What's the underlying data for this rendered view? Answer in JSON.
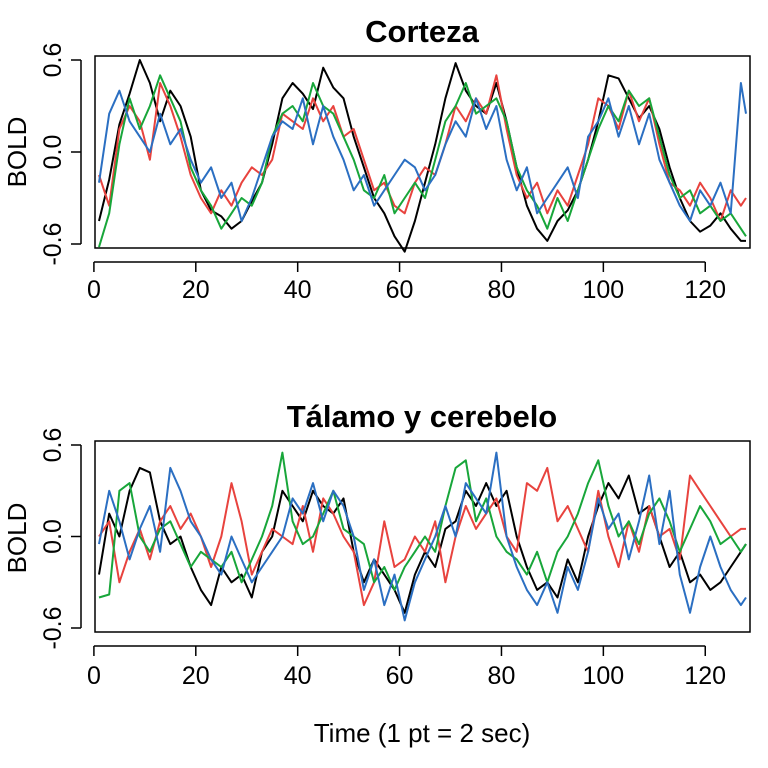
{
  "figure": {
    "shared_xlabel": "Time (1 pt = 2 sec)"
  },
  "chart_data": [
    {
      "type": "line",
      "title": "Corteza",
      "xlabel": "",
      "ylabel": "BOLD",
      "xlim": [
        1,
        128
      ],
      "ylim": [
        -0.6,
        0.6
      ],
      "x_ticks": [
        0,
        20,
        40,
        60,
        80,
        100,
        120
      ],
      "y_ticks": [
        -0.6,
        0.0,
        0.6
      ],
      "y_tick_labels": [
        "-0.6",
        "0.0",
        "0.6"
      ],
      "grid": false,
      "legend": "none",
      "colors": {
        "black": "#000000",
        "red": "#e8433e",
        "green": "#18a63a",
        "blue": "#2b6fc2"
      },
      "x": [
        1,
        3,
        5,
        7,
        9,
        11,
        13,
        15,
        17,
        19,
        21,
        23,
        25,
        27,
        29,
        31,
        33,
        35,
        37,
        39,
        41,
        43,
        45,
        47,
        49,
        51,
        53,
        55,
        57,
        59,
        61,
        63,
        65,
        67,
        69,
        71,
        73,
        75,
        77,
        79,
        81,
        83,
        85,
        87,
        89,
        91,
        93,
        95,
        97,
        99,
        101,
        103,
        105,
        107,
        109,
        111,
        113,
        115,
        117,
        119,
        121,
        123,
        125,
        127,
        128
      ],
      "series": [
        {
          "name": "black",
          "values": [
            -0.45,
            -0.18,
            0.18,
            0.38,
            0.6,
            0.45,
            0.2,
            0.4,
            0.3,
            0.1,
            -0.25,
            -0.38,
            -0.42,
            -0.5,
            -0.45,
            -0.32,
            -0.2,
            0.05,
            0.35,
            0.45,
            0.38,
            0.28,
            0.55,
            0.42,
            0.35,
            0.1,
            -0.1,
            -0.3,
            -0.4,
            -0.55,
            -0.65,
            -0.45,
            -0.2,
            0.05,
            0.35,
            0.58,
            0.4,
            0.3,
            0.25,
            0.45,
            0.2,
            -0.1,
            -0.35,
            -0.5,
            -0.58,
            -0.45,
            -0.38,
            -0.25,
            -0.05,
            0.2,
            0.5,
            0.48,
            0.35,
            0.22,
            0.3,
            0.15,
            -0.1,
            -0.3,
            -0.45,
            -0.52,
            -0.48,
            -0.4,
            -0.5,
            -0.58,
            -0.58
          ]
        },
        {
          "name": "red",
          "values": [
            -0.15,
            -0.35,
            0.15,
            0.3,
            0.2,
            -0.05,
            0.45,
            0.3,
            0.1,
            -0.15,
            -0.3,
            -0.4,
            -0.25,
            -0.35,
            -0.2,
            -0.1,
            -0.15,
            -0.05,
            0.25,
            0.2,
            0.15,
            0.35,
            0.2,
            0.3,
            0.1,
            0.15,
            -0.05,
            -0.25,
            -0.2,
            -0.35,
            -0.4,
            -0.2,
            -0.1,
            -0.15,
            0.05,
            0.3,
            0.2,
            0.35,
            0.25,
            0.5,
            0.15,
            -0.15,
            -0.3,
            -0.2,
            -0.4,
            -0.25,
            -0.35,
            -0.15,
            0.05,
            0.35,
            0.3,
            0.15,
            0.4,
            0.2,
            0.35,
            0.05,
            -0.2,
            -0.25,
            -0.35,
            -0.2,
            -0.3,
            -0.45,
            -0.25,
            -0.35,
            -0.3
          ]
        },
        {
          "name": "green",
          "values": [
            -0.62,
            -0.4,
            0.05,
            0.35,
            0.15,
            0.3,
            0.5,
            0.35,
            0.2,
            -0.1,
            -0.25,
            -0.35,
            -0.5,
            -0.4,
            -0.3,
            -0.35,
            -0.2,
            0.1,
            0.25,
            0.3,
            0.2,
            0.45,
            0.3,
            0.25,
            0.1,
            -0.05,
            -0.25,
            -0.3,
            -0.15,
            -0.4,
            -0.3,
            -0.2,
            -0.3,
            -0.05,
            0.2,
            0.3,
            0.45,
            0.25,
            0.3,
            0.35,
            0.2,
            -0.1,
            -0.25,
            -0.35,
            -0.5,
            -0.3,
            -0.45,
            -0.25,
            -0.05,
            0.15,
            0.3,
            0.2,
            0.4,
            0.3,
            0.35,
            0.1,
            -0.15,
            -0.3,
            -0.25,
            -0.4,
            -0.35,
            -0.45,
            -0.4,
            -0.5,
            -0.55
          ]
        },
        {
          "name": "blue",
          "values": [
            -0.2,
            0.25,
            0.4,
            0.2,
            0.1,
            0.0,
            0.25,
            0.05,
            0.15,
            -0.05,
            -0.2,
            -0.1,
            -0.3,
            -0.2,
            -0.45,
            -0.3,
            -0.1,
            0.1,
            0.2,
            0.15,
            0.35,
            0.05,
            0.3,
            0.1,
            -0.05,
            -0.25,
            -0.15,
            -0.35,
            -0.25,
            -0.15,
            -0.05,
            -0.1,
            -0.25,
            -0.15,
            0.05,
            0.2,
            0.1,
            0.35,
            0.15,
            0.3,
            -0.05,
            -0.25,
            -0.1,
            -0.4,
            -0.3,
            -0.2,
            -0.1,
            -0.3,
            0.1,
            0.2,
            0.35,
            0.1,
            0.3,
            0.05,
            0.25,
            -0.05,
            -0.2,
            -0.35,
            -0.45,
            -0.25,
            -0.35,
            -0.2,
            -0.4,
            0.45,
            0.25
          ]
        }
      ]
    },
    {
      "type": "line",
      "title": "Tálamo y cerebelo",
      "xlabel": "Time (1 pt = 2 sec)",
      "ylabel": "BOLD",
      "xlim": [
        1,
        128
      ],
      "ylim": [
        -0.6,
        0.6
      ],
      "x_ticks": [
        0,
        20,
        40,
        60,
        80,
        100,
        120
      ],
      "y_ticks": [
        -0.6,
        0.0,
        0.6
      ],
      "y_tick_labels": [
        "-0.6",
        "0.0",
        "0.6"
      ],
      "grid": false,
      "legend": "none",
      "colors": {
        "black": "#000000",
        "red": "#e8433e",
        "green": "#18a63a",
        "blue": "#2b6fc2"
      },
      "x": [
        1,
        3,
        5,
        7,
        9,
        11,
        13,
        15,
        17,
        19,
        21,
        23,
        25,
        27,
        29,
        31,
        33,
        35,
        37,
        39,
        41,
        43,
        45,
        47,
        49,
        51,
        53,
        55,
        57,
        59,
        61,
        63,
        65,
        67,
        69,
        71,
        73,
        75,
        77,
        79,
        81,
        83,
        85,
        87,
        89,
        91,
        93,
        95,
        97,
        99,
        101,
        103,
        105,
        107,
        109,
        111,
        113,
        115,
        117,
        119,
        121,
        123,
        125,
        127,
        128
      ],
      "series": [
        {
          "name": "black",
          "values": [
            -0.25,
            0.15,
            0.0,
            0.3,
            0.45,
            0.42,
            0.1,
            -0.05,
            0.0,
            -0.2,
            -0.35,
            -0.45,
            -0.2,
            -0.3,
            -0.25,
            -0.4,
            -0.1,
            0.0,
            0.3,
            0.2,
            0.1,
            0.3,
            0.2,
            0.15,
            0.25,
            -0.1,
            -0.3,
            -0.15,
            -0.25,
            -0.35,
            -0.5,
            -0.25,
            -0.1,
            -0.2,
            0.05,
            0.1,
            0.3,
            0.2,
            0.35,
            0.2,
            0.3,
            0.0,
            -0.2,
            -0.35,
            -0.3,
            -0.4,
            -0.15,
            -0.3,
            0.0,
            0.2,
            0.35,
            0.25,
            0.4,
            0.15,
            0.2,
            0.0,
            -0.2,
            -0.1,
            -0.3,
            -0.25,
            -0.35,
            -0.3,
            -0.2,
            -0.1,
            -0.05
          ]
        },
        {
          "name": "red",
          "values": [
            0.0,
            0.1,
            -0.3,
            -0.1,
            0.05,
            -0.15,
            0.1,
            0.2,
            0.05,
            0.15,
            0.0,
            -0.2,
            0.0,
            0.35,
            0.1,
            -0.25,
            -0.1,
            0.05,
            0.0,
            -0.05,
            0.2,
            -0.1,
            0.25,
            0.15,
            0.0,
            -0.1,
            -0.45,
            -0.3,
            0.1,
            -0.2,
            -0.15,
            0.0,
            -0.1,
            0.1,
            -0.3,
            0.0,
            0.2,
            0.05,
            0.15,
            0.25,
            0.0,
            -0.1,
            0.35,
            0.3,
            0.45,
            0.1,
            0.2,
            0.05,
            -0.1,
            0.3,
            0.0,
            -0.2,
            0.1,
            -0.1,
            0.2,
            0.0,
            0.05,
            -0.15,
            0.4,
            0.3,
            0.2,
            0.1,
            0.0,
            0.05,
            0.05
          ]
        },
        {
          "name": "green",
          "values": [
            -0.4,
            -0.38,
            0.3,
            0.35,
            0.0,
            -0.1,
            0.05,
            0.1,
            -0.05,
            -0.2,
            -0.1,
            -0.15,
            -0.2,
            -0.1,
            -0.3,
            -0.15,
            0.0,
            0.2,
            0.55,
            0.1,
            -0.05,
            0.0,
            0.15,
            0.3,
            0.05,
            0.0,
            -0.05,
            -0.3,
            -0.2,
            -0.35,
            -0.2,
            -0.1,
            0.0,
            -0.1,
            0.2,
            0.45,
            0.5,
            0.1,
            0.25,
            0.0,
            -0.1,
            -0.15,
            -0.25,
            -0.1,
            -0.3,
            -0.1,
            0.0,
            0.15,
            0.35,
            0.5,
            0.2,
            0.0,
            0.1,
            -0.05,
            0.15,
            0.25,
            0.1,
            -0.1,
            0.05,
            0.2,
            0.1,
            -0.05,
            0.0,
            -0.1,
            -0.05
          ]
        },
        {
          "name": "blue",
          "values": [
            -0.05,
            0.3,
            0.1,
            -0.15,
            0.05,
            0.2,
            -0.1,
            0.45,
            0.3,
            0.1,
            0.0,
            -0.15,
            -0.25,
            0.0,
            -0.15,
            -0.3,
            -0.2,
            -0.1,
            0.0,
            0.25,
            0.15,
            0.35,
            0.1,
            0.3,
            0.2,
            0.0,
            -0.35,
            -0.15,
            -0.45,
            -0.25,
            -0.55,
            -0.3,
            -0.15,
            0.0,
            0.2,
            0.0,
            0.35,
            0.25,
            0.15,
            0.55,
            0.0,
            -0.2,
            -0.35,
            -0.45,
            -0.3,
            -0.5,
            -0.2,
            -0.35,
            -0.1,
            0.25,
            0.05,
            0.15,
            -0.15,
            0.1,
            0.4,
            -0.05,
            0.3,
            -0.25,
            -0.5,
            -0.2,
            0.0,
            -0.2,
            -0.35,
            -0.45,
            -0.4
          ]
        }
      ]
    }
  ]
}
